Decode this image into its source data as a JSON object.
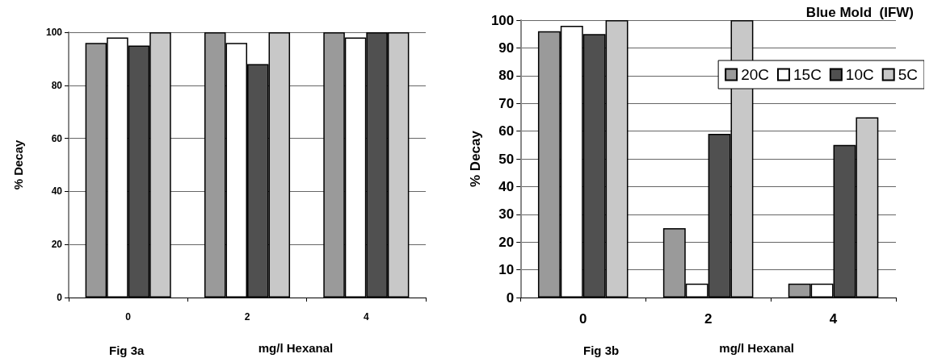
{
  "chart_data": [
    {
      "type": "bar",
      "xlabel": "mg/l Hexanal",
      "ylabel": "% Decay",
      "annotations": [
        "Fig 3a"
      ],
      "categories": [
        "0",
        "2",
        "4"
      ],
      "series": [
        {
          "color": "#9a9a9a",
          "values": [
            96,
            100,
            100
          ]
        },
        {
          "color": "#ffffff",
          "values": [
            98,
            96,
            98
          ]
        },
        {
          "color": "#505050",
          "values": [
            95,
            88,
            100
          ]
        },
        {
          "color": "#c8c8c8",
          "values": [
            100,
            100,
            100
          ]
        }
      ],
      "ylim": [
        0,
        100
      ],
      "yticks": [
        0,
        20,
        40,
        60,
        80,
        100
      ],
      "grid": "y",
      "legend": false
    },
    {
      "type": "bar",
      "title": "Blue Mold  (IFW)",
      "xlabel": "mg/l Hexanal",
      "ylabel": "% Decay",
      "annotations": [
        "Fig 3b"
      ],
      "categories": [
        "0",
        "2",
        "4"
      ],
      "series": [
        {
          "name": "20C",
          "color": "#9a9a9a",
          "values": [
            96,
            25,
            5
          ]
        },
        {
          "name": "15C",
          "color": "#ffffff",
          "values": [
            98,
            5,
            5
          ]
        },
        {
          "name": "10C",
          "color": "#505050",
          "values": [
            95,
            59,
            55
          ]
        },
        {
          "name": "5C",
          "color": "#c8c8c8",
          "values": [
            100,
            100,
            65
          ]
        }
      ],
      "ylim": [
        0,
        100
      ],
      "yticks": [
        0,
        10,
        20,
        30,
        40,
        50,
        60,
        70,
        80,
        90,
        100
      ],
      "grid": "y",
      "legend": "top right"
    }
  ]
}
